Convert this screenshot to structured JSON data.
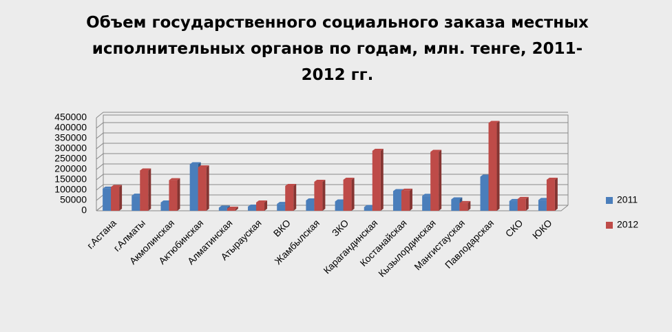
{
  "chart_data": {
    "type": "bar",
    "title": "Объем государственного социального заказа местных исполнительных органов по  годам, млн. тенге, 2011-2012 гг.",
    "categories": [
      "г.Астана",
      "г.Алматы",
      "Акмолинская",
      "Актюбинская",
      "Алматинская",
      "Атырауская",
      "ВКО",
      "Жамбылская",
      "ЗКО",
      "Карагандинская",
      "Костанайская",
      "Кызылординская",
      "Мангистауская",
      "Павлодарская",
      "СКО",
      "ЮКО"
    ],
    "series": [
      {
        "name": "2011",
        "color": "#4a7ebb",
        "values": [
          107000,
          73000,
          40000,
          225000,
          15000,
          20000,
          33000,
          50000,
          45000,
          18000,
          95000,
          72000,
          55000,
          165000,
          47000,
          52000
        ]
      },
      {
        "name": "2012",
        "color": "#be4b48",
        "values": [
          115000,
          195000,
          148000,
          210000,
          10000,
          40000,
          120000,
          140000,
          150000,
          290000,
          97000,
          285000,
          37000,
          425000,
          57000,
          150000
        ]
      }
    ],
    "ylim": [
      0,
      450000
    ],
    "yticks": [
      0,
      50000,
      100000,
      150000,
      200000,
      250000,
      300000,
      350000,
      400000,
      450000
    ],
    "grid": true,
    "legend": "right"
  }
}
